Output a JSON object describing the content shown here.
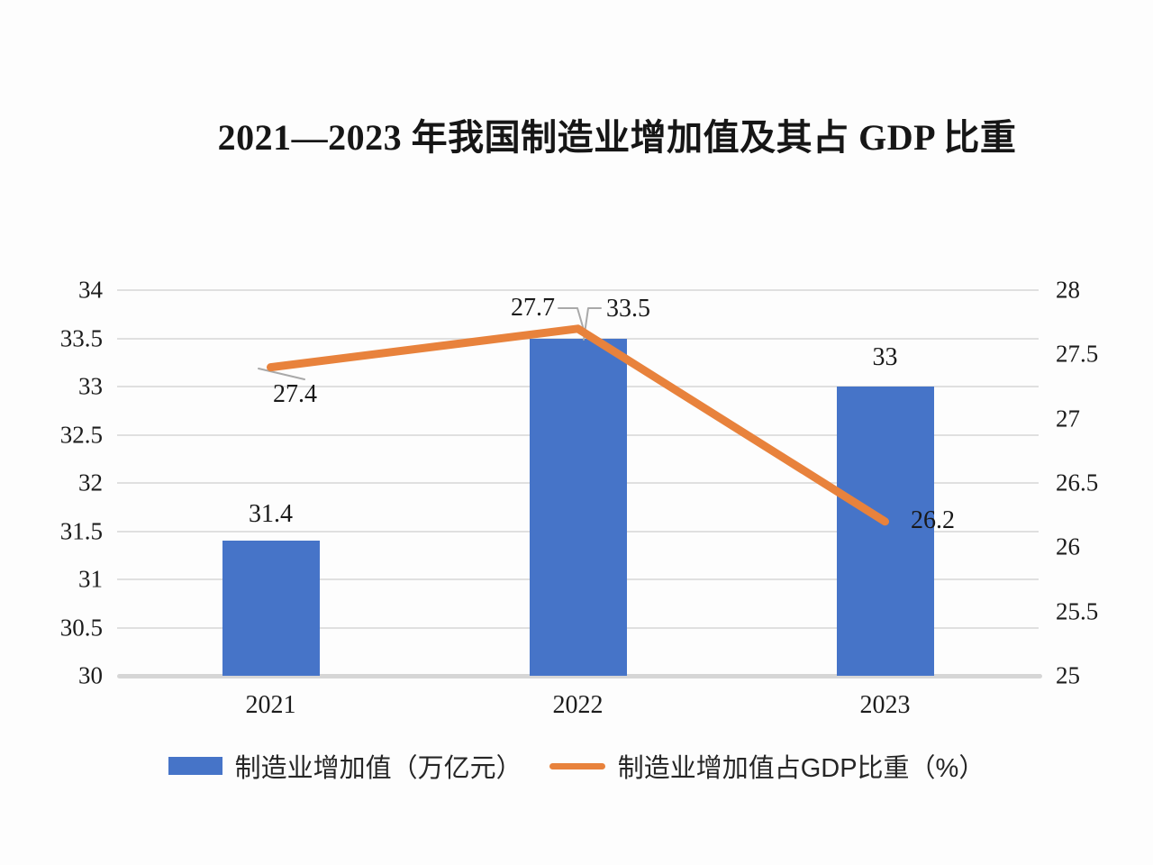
{
  "title": "2021—2023 年我国制造业增加值及其占 GDP 比重",
  "colors": {
    "bar": "#4674C8",
    "line": "#E8823C",
    "gridline": "#E0E0E0",
    "axis_line": "#D6D6D6",
    "text": "#1C1C1C",
    "leader": "#A9A9A9",
    "background": "#FDFDFD"
  },
  "chart_data": {
    "type": "bar",
    "subtype": "combo-bar-line-dual-axis",
    "title": "2021—2023 年我国制造业增加值及其占 GDP 比重",
    "categories": [
      "2021",
      "2022",
      "2023"
    ],
    "series": [
      {
        "name": "制造业增加值（万亿元）",
        "type": "bar",
        "axis": "left",
        "values": [
          31.4,
          33.5,
          33
        ],
        "labels": [
          "31.4",
          "33.5",
          "33"
        ],
        "color": "#4674C8"
      },
      {
        "name": "制造业增加值占GDP比重（%）",
        "type": "line",
        "axis": "right",
        "values": [
          27.4,
          27.7,
          26.2
        ],
        "labels": [
          "27.4",
          "27.7",
          "26.2"
        ],
        "color": "#E8823C"
      }
    ],
    "left_axis": {
      "min": 30,
      "max": 34,
      "step": 0.5,
      "ticks": [
        "34",
        "33.5",
        "33",
        "32.5",
        "32",
        "31.5",
        "31",
        "30.5",
        "30"
      ]
    },
    "right_axis": {
      "min": 25,
      "max": 28,
      "step": 0.5,
      "ticks": [
        "28",
        "27.5",
        "27",
        "26.5",
        "26",
        "25.5",
        "25"
      ]
    },
    "grid": true,
    "legend_position": "bottom"
  },
  "legend": {
    "items": [
      {
        "label": "制造业增加值（万亿元）",
        "swatch": "bar"
      },
      {
        "label": "制造业增加值占GDP比重（%）",
        "swatch": "line"
      }
    ]
  }
}
